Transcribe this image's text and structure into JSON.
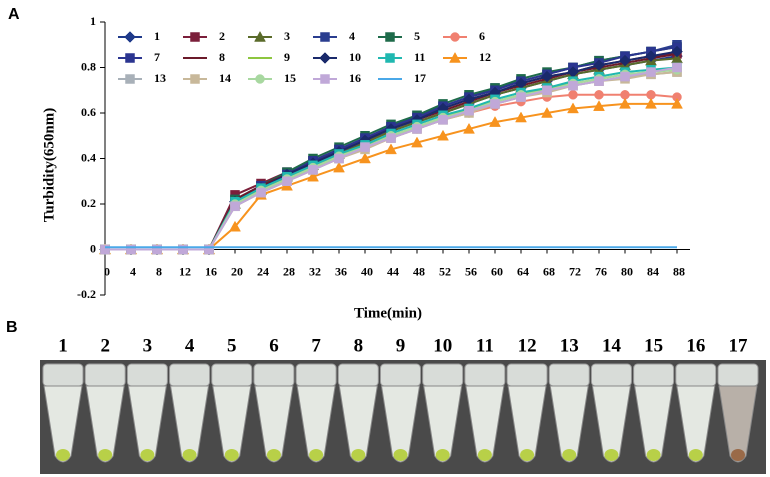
{
  "panel_labels": [
    "A",
    "B"
  ],
  "chart_data": {
    "type": "line",
    "xlabel": "Time(min)",
    "ylabel": "Turbidity(650nm)",
    "x": [
      0,
      4,
      8,
      12,
      16,
      20,
      24,
      28,
      32,
      36,
      40,
      44,
      48,
      52,
      56,
      60,
      64,
      68,
      72,
      76,
      80,
      84,
      88
    ],
    "xlim": [
      0,
      90
    ],
    "xticks": [
      0,
      4,
      8,
      12,
      16,
      20,
      24,
      28,
      32,
      36,
      40,
      44,
      48,
      52,
      56,
      60,
      64,
      68,
      72,
      76,
      80,
      84,
      88
    ],
    "ylim": [
      -0.2,
      1
    ],
    "yticks": [
      -0.2,
      0,
      0.2,
      0.4,
      0.6,
      0.8,
      1
    ],
    "legend": "upper left",
    "series": [
      {
        "name": "1",
        "color": "#1f3a8a",
        "marker": "diamond",
        "values": [
          0,
          0,
          0,
          0,
          0,
          0.21,
          0.27,
          0.32,
          0.37,
          0.42,
          0.47,
          0.52,
          0.56,
          0.6,
          0.64,
          0.68,
          0.71,
          0.74,
          0.77,
          0.79,
          0.81,
          0.83,
          0.85
        ]
      },
      {
        "name": "2",
        "color": "#7b1f3a",
        "marker": "square",
        "values": [
          0,
          0,
          0,
          0,
          0,
          0.24,
          0.29,
          0.34,
          0.39,
          0.44,
          0.49,
          0.53,
          0.58,
          0.62,
          0.66,
          0.69,
          0.73,
          0.76,
          0.78,
          0.81,
          0.83,
          0.85,
          0.86
        ]
      },
      {
        "name": "3",
        "color": "#5a6b2a",
        "marker": "triangle",
        "values": [
          0,
          0,
          0,
          0,
          0,
          0.2,
          0.26,
          0.32,
          0.37,
          0.42,
          0.47,
          0.52,
          0.56,
          0.6,
          0.64,
          0.68,
          0.71,
          0.74,
          0.77,
          0.79,
          0.81,
          0.83,
          0.84
        ]
      },
      {
        "name": "4",
        "color": "#2a3d8f",
        "marker": "square",
        "values": [
          0,
          0,
          0,
          0,
          0,
          0.22,
          0.28,
          0.34,
          0.39,
          0.44,
          0.49,
          0.54,
          0.59,
          0.63,
          0.67,
          0.71,
          0.74,
          0.77,
          0.8,
          0.83,
          0.85,
          0.87,
          0.9
        ]
      },
      {
        "name": "5",
        "color": "#1e6b4a",
        "marker": "square",
        "values": [
          0,
          0,
          0,
          0,
          0,
          0.22,
          0.28,
          0.34,
          0.4,
          0.45,
          0.5,
          0.55,
          0.59,
          0.64,
          0.68,
          0.71,
          0.75,
          0.78,
          0.8,
          0.83,
          0.85,
          0.87,
          0.89
        ]
      },
      {
        "name": "6",
        "color": "#f08070",
        "marker": "circle",
        "values": [
          0,
          0,
          0,
          0,
          0,
          0.2,
          0.26,
          0.31,
          0.36,
          0.41,
          0.45,
          0.49,
          0.53,
          0.57,
          0.6,
          0.63,
          0.65,
          0.67,
          0.68,
          0.68,
          0.68,
          0.68,
          0.67
        ]
      },
      {
        "name": "7",
        "color": "#2b3590",
        "marker": "square",
        "values": [
          0,
          0,
          0,
          0,
          0,
          0.21,
          0.28,
          0.33,
          0.39,
          0.44,
          0.49,
          0.54,
          0.58,
          0.63,
          0.67,
          0.7,
          0.74,
          0.77,
          0.8,
          0.82,
          0.85,
          0.87,
          0.89
        ]
      },
      {
        "name": "8",
        "color": "#6b1a2a",
        "values": [
          0,
          0,
          0,
          0,
          0,
          0.22,
          0.28,
          0.33,
          0.38,
          0.43,
          0.48,
          0.53,
          0.57,
          0.61,
          0.65,
          0.69,
          0.72,
          0.75,
          0.78,
          0.8,
          0.82,
          0.84,
          0.86
        ]
      },
      {
        "name": "9",
        "color": "#8dc63f",
        "values": [
          0,
          0,
          0,
          0,
          0,
          0.2,
          0.26,
          0.31,
          0.36,
          0.41,
          0.46,
          0.5,
          0.54,
          0.58,
          0.62,
          0.65,
          0.68,
          0.71,
          0.73,
          0.75,
          0.77,
          0.78,
          0.79
        ]
      },
      {
        "name": "10",
        "color": "#1a2a6b",
        "marker": "diamond",
        "values": [
          0,
          0,
          0,
          0,
          0,
          0.21,
          0.27,
          0.33,
          0.38,
          0.43,
          0.48,
          0.53,
          0.57,
          0.62,
          0.66,
          0.69,
          0.73,
          0.76,
          0.78,
          0.81,
          0.83,
          0.85,
          0.87
        ]
      },
      {
        "name": "11",
        "color": "#20b8b0",
        "marker": "square",
        "values": [
          0,
          0,
          0,
          0,
          0,
          0.21,
          0.27,
          0.32,
          0.37,
          0.42,
          0.46,
          0.51,
          0.55,
          0.59,
          0.62,
          0.66,
          0.69,
          0.71,
          0.74,
          0.76,
          0.78,
          0.79,
          0.8
        ]
      },
      {
        "name": "12",
        "color": "#f7931e",
        "marker": "triangle",
        "values": [
          0,
          0,
          0,
          0,
          0,
          0.1,
          0.24,
          0.28,
          0.32,
          0.36,
          0.4,
          0.44,
          0.47,
          0.5,
          0.53,
          0.56,
          0.58,
          0.6,
          0.62,
          0.63,
          0.64,
          0.64,
          0.64
        ]
      },
      {
        "name": "13",
        "color": "#a8b0b8",
        "marker": "square",
        "values": [
          0,
          0,
          0,
          0,
          0,
          0.19,
          0.25,
          0.3,
          0.35,
          0.4,
          0.45,
          0.49,
          0.53,
          0.57,
          0.61,
          0.64,
          0.67,
          0.7,
          0.72,
          0.74,
          0.76,
          0.77,
          0.78
        ]
      },
      {
        "name": "14",
        "color": "#c8b89a",
        "marker": "square",
        "values": [
          0,
          0,
          0,
          0,
          0,
          0.19,
          0.25,
          0.3,
          0.35,
          0.4,
          0.44,
          0.49,
          0.53,
          0.57,
          0.6,
          0.64,
          0.67,
          0.69,
          0.72,
          0.74,
          0.75,
          0.77,
          0.78
        ]
      },
      {
        "name": "15",
        "color": "#a8d8a0",
        "marker": "circle",
        "values": [
          0,
          0,
          0,
          0,
          0,
          0.2,
          0.26,
          0.31,
          0.36,
          0.41,
          0.45,
          0.5,
          0.54,
          0.58,
          0.61,
          0.65,
          0.68,
          0.7,
          0.73,
          0.75,
          0.77,
          0.78,
          0.79
        ]
      },
      {
        "name": "16",
        "color": "#c0a8d8",
        "marker": "square",
        "values": [
          0,
          0,
          0,
          0,
          0,
          0.19,
          0.25,
          0.3,
          0.35,
          0.4,
          0.45,
          0.49,
          0.53,
          0.57,
          0.61,
          0.64,
          0.67,
          0.7,
          0.72,
          0.74,
          0.76,
          0.78,
          0.8
        ]
      },
      {
        "name": "17",
        "color": "#4aa8e8",
        "values": [
          0.01,
          0.01,
          0.01,
          0.01,
          0.01,
          0.01,
          0.01,
          0.01,
          0.01,
          0.01,
          0.01,
          0.01,
          0.01,
          0.01,
          0.01,
          0.01,
          0.01,
          0.01,
          0.01,
          0.01,
          0.01,
          0.01,
          0.01
        ]
      }
    ]
  },
  "photo": {
    "labels": [
      "1",
      "2",
      "3",
      "4",
      "5",
      "6",
      "7",
      "8",
      "9",
      "10",
      "11",
      "12",
      "13",
      "14",
      "15",
      "16",
      "17"
    ]
  }
}
